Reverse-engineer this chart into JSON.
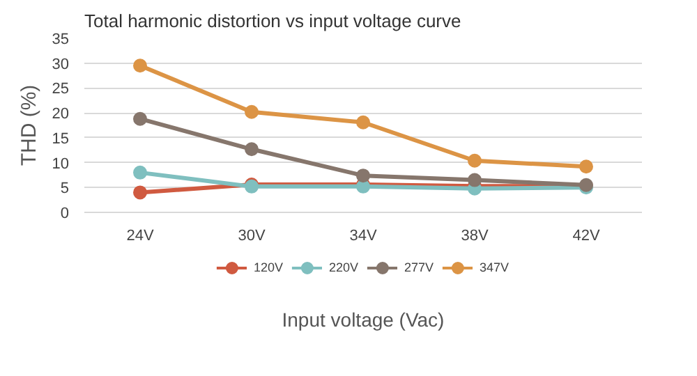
{
  "chart_data": {
    "type": "line",
    "title": "Total harmonic distortion vs input voltage curve",
    "xlabel": "Input voltage (Vac)",
    "ylabel": "THD (%)",
    "categories": [
      "24V",
      "30V",
      "34V",
      "38V",
      "42V"
    ],
    "series": [
      {
        "name": "120V",
        "color": "#d05a40",
        "values": [
          4,
          5.6,
          5.6,
          5.3,
          5.3
        ]
      },
      {
        "name": "220V",
        "color": "#7fbfbf",
        "values": [
          8,
          5.2,
          5.2,
          4.8,
          5
        ]
      },
      {
        "name": "277V",
        "color": "#86766c",
        "values": [
          18.8,
          12.7,
          7.4,
          6.5,
          5.5
        ]
      },
      {
        "name": "347V",
        "color": "#dc9445",
        "values": [
          29.5,
          20.2,
          18.1,
          10.4,
          9.2
        ]
      }
    ],
    "ylim": [
      0,
      35
    ],
    "yticks": [
      0,
      5,
      10,
      15,
      20,
      25,
      30,
      35
    ],
    "grid": "y",
    "legend": "bottom",
    "marker": "circle",
    "line_style": "solid"
  }
}
